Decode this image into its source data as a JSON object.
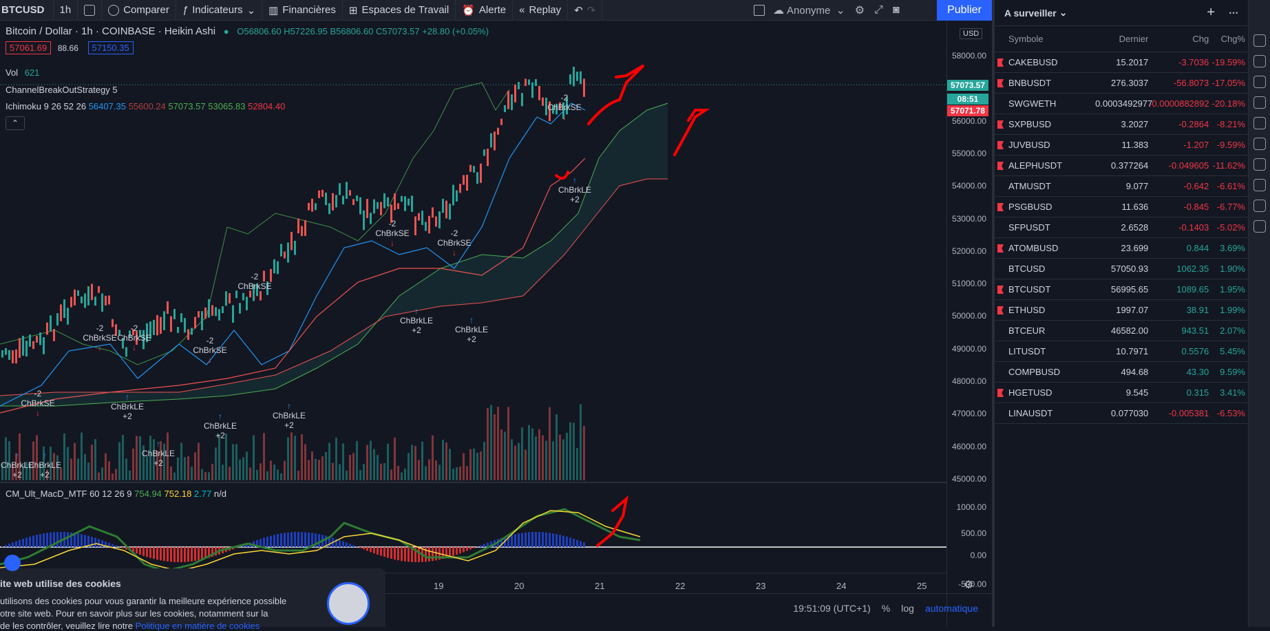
{
  "topbar": {
    "symbol": "BTCUSD",
    "interval": "1h",
    "compare": "Comparer",
    "indicators": "Indicateurs",
    "financials": "Financières",
    "workspaces": "Espaces de Travail",
    "alert": "Alerte",
    "replay": "Replay",
    "account": "Anonyme",
    "publish": "Publier"
  },
  "legend": {
    "title": "Bitcoin / Dollar · 1h · COINBASE · Heikin Ashi",
    "o": "O56806.60",
    "h": "H57226.95",
    "b": "B56806.60",
    "c": "C57073.57",
    "chg": "+28.80 (+0.05%)",
    "bid": "57061.69",
    "spread": "88.66",
    "ask": "57150.35",
    "vol_label": "Vol",
    "vol": "621",
    "strategy": "ChannelBreakOutStrategy 5",
    "ichimoku_label": "Ichimoku 9 26 52 26",
    "ich1": "56407.35",
    "ich2": "55600.24",
    "ich3": "57073.57",
    "ich4": "53065.83",
    "ich5": "52804.40",
    "macd_label": "CM_Ult_MacD_MTF 60 12 26 9",
    "macd1": "754.94",
    "macd2": "752.18",
    "macd3": "2.77",
    "macd4": "n/d"
  },
  "axis": {
    "currency": "USD",
    "prices": [
      "58000.00",
      "57000.00",
      "56000.00",
      "55000.00",
      "54000.00",
      "53000.00",
      "52000.00",
      "51000.00",
      "50000.00",
      "49000.00",
      "48000.00",
      "47000.00",
      "46000.00",
      "45000.00"
    ],
    "macd": [
      "1000.00",
      "500.00",
      "0.00",
      "-500.00"
    ],
    "tag_price": "57073.57",
    "tag_time": "08:51",
    "tag_low": "57071.78",
    "dates": [
      "19",
      "20",
      "21",
      "22",
      "23",
      "24",
      "25"
    ]
  },
  "signals": {
    "se": "ChBrkSE",
    "le": "ChBrkLE",
    "minus2": "-2",
    "plus2": "+2"
  },
  "colors": {
    "up": "#26a69a",
    "down": "#ef5350",
    "accent": "#2962ff"
  },
  "watchlist": {
    "title": "A surveiller",
    "cols": [
      "Symbole",
      "Dernier",
      "Chg",
      "Chg%"
    ],
    "rows": [
      {
        "sym": "CAKEBUSD",
        "last": "15.2017",
        "chg": "-3.7036",
        "pct": "-19.59%",
        "flag": true,
        "dir": "red"
      },
      {
        "sym": "BNBUSDT",
        "last": "276.3037",
        "chg": "-56.8073",
        "pct": "-17.05%",
        "flag": true,
        "dir": "red"
      },
      {
        "sym": "SWGWETH",
        "last": "0.0003492977",
        "chg": "-0.0000882892",
        "pct": "-20.18%",
        "flag": false,
        "dir": "red"
      },
      {
        "sym": "SXPBUSD",
        "last": "3.2027",
        "chg": "-0.2864",
        "pct": "-8.21%",
        "flag": true,
        "dir": "red"
      },
      {
        "sym": "JUVBUSD",
        "last": "11.383",
        "chg": "-1.207",
        "pct": "-9.59%",
        "flag": true,
        "dir": "red"
      },
      {
        "sym": "ALEPHUSDT",
        "last": "0.377264",
        "chg": "-0.049605",
        "pct": "-11.62%",
        "flag": true,
        "dir": "red"
      },
      {
        "sym": "ATMUSDT",
        "last": "9.077",
        "chg": "-0.642",
        "pct": "-6.61%",
        "flag": false,
        "dir": "red"
      },
      {
        "sym": "PSGBUSD",
        "last": "11.636",
        "chg": "-0.845",
        "pct": "-6.77%",
        "flag": true,
        "dir": "red"
      },
      {
        "sym": "SFPUSDT",
        "last": "2.6528",
        "chg": "-0.1403",
        "pct": "-5.02%",
        "flag": false,
        "dir": "red"
      },
      {
        "sym": "ATOMBUSD",
        "last": "23.699",
        "chg": "0.844",
        "pct": "3.69%",
        "flag": true,
        "dir": "green"
      },
      {
        "sym": "BTCUSD",
        "last": "57050.93",
        "chg": "1062.35",
        "pct": "1.90%",
        "flag": false,
        "dir": "green"
      },
      {
        "sym": "BTCUSDT",
        "last": "56995.65",
        "chg": "1089.65",
        "pct": "1.95%",
        "flag": true,
        "dir": "green"
      },
      {
        "sym": "ETHUSD",
        "last": "1997.07",
        "chg": "38.91",
        "pct": "1.99%",
        "flag": true,
        "dir": "green"
      },
      {
        "sym": "BTCEUR",
        "last": "46582.00",
        "chg": "943.51",
        "pct": "2.07%",
        "flag": false,
        "dir": "green"
      },
      {
        "sym": "LITUSDT",
        "last": "10.7971",
        "chg": "0.5576",
        "pct": "5.45%",
        "flag": false,
        "dir": "green"
      },
      {
        "sym": "COMPBUSD",
        "last": "494.68",
        "chg": "43.30",
        "pct": "9.59%",
        "flag": false,
        "dir": "green"
      },
      {
        "sym": "HGETUSD",
        "last": "9.545",
        "chg": "0.315",
        "pct": "3.41%",
        "flag": true,
        "dir": "green"
      },
      {
        "sym": "LINAUSDT",
        "last": "0.077030",
        "chg": "-0.005381",
        "pct": "-6.53%",
        "flag": false,
        "dir": "red"
      }
    ]
  },
  "cookie": {
    "title": "ite web utilise des cookies",
    "line1": "utilisons des cookies pour vous garantir la meilleure expérience possible",
    "line2": "otre site web. Pour en savoir plus sur les cookies, notamment sur la",
    "line3": "de les contrôler, veuillez lire notre",
    "link": "Politique en matière de cookies"
  },
  "bottom": {
    "time": "19:51:09 (UTC+1)",
    "pct": "%",
    "log": "log",
    "auto": "automatique"
  }
}
